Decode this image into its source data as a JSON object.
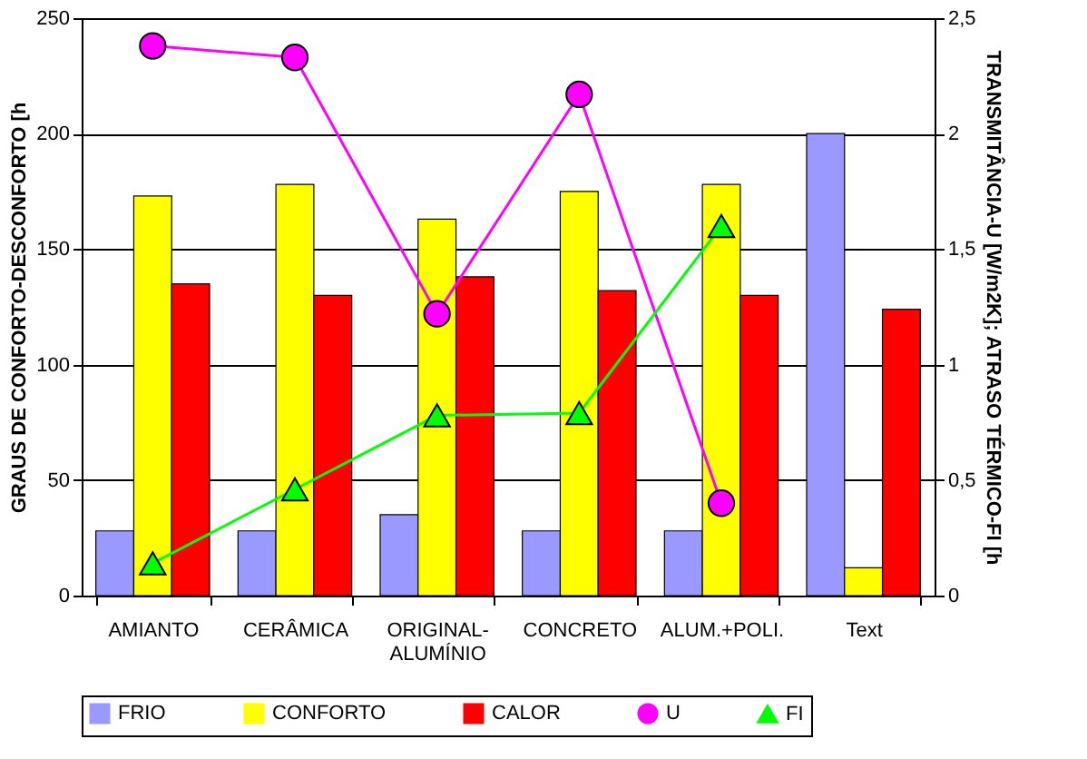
{
  "chart_data": {
    "type": "bar",
    "xlabel": null,
    "ylabel": "GRAUS DE CONFORTO-DESCONFORTO [h",
    "y2label": "TRANSMITÂNCIA-U [W/m2K]; ATRASO TÉRMICO-FI [h",
    "categories": [
      "AMIANTO",
      "CERÂMICA",
      "ORIGINAL-\nALUMÍNIO",
      "CONCRETO",
      "ALUM.+POLI.",
      "Text"
    ],
    "series": [
      {
        "name": "FRIO",
        "color": "#9999ff",
        "values": [
          28,
          28,
          35,
          28,
          28,
          200
        ]
      },
      {
        "name": "CONFORTO",
        "color": "#ffff00",
        "values": [
          173,
          178,
          163,
          175,
          178,
          12
        ]
      },
      {
        "name": "CALOR",
        "color": "#ff0000",
        "values": [
          135,
          130,
          138,
          132,
          130,
          124
        ]
      },
      {
        "name": "U",
        "type": "line",
        "axis": "y2",
        "marker": "circle",
        "color": "#ff00ff",
        "values": [
          2.38,
          2.33,
          1.22,
          2.17,
          0.4,
          null
        ]
      },
      {
        "name": "FI",
        "type": "line",
        "axis": "y2",
        "marker": "triangle",
        "color": "#00ff00",
        "values": [
          0.14,
          0.46,
          0.78,
          0.79,
          1.6,
          null
        ]
      }
    ],
    "ylim": [
      0,
      250
    ],
    "yticks": [
      0,
      50,
      100,
      150,
      200,
      250
    ],
    "y2lim": [
      0,
      2.5
    ],
    "y2ticks": [
      0,
      {
        "value": 0.5,
        "label": "0,5"
      },
      1,
      {
        "value": 1.5,
        "label": "1,5"
      },
      2,
      {
        "value": 2.5,
        "label": "2,5"
      }
    ],
    "grid": "y",
    "legend": "bottom"
  }
}
